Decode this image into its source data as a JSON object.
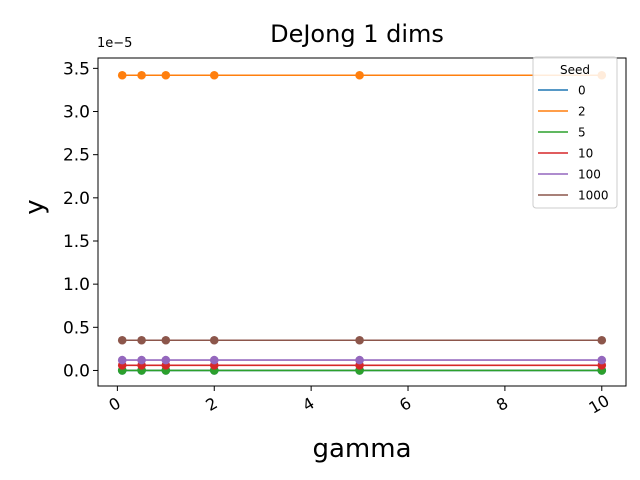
{
  "chart_data": {
    "type": "line",
    "title": "DeJong 1 dims",
    "xlabel": "gamma",
    "ylabel": "y",
    "y_offset_text": "1e−5",
    "xlim": [
      -0.4,
      10.5
    ],
    "ylim": [
      -0.18,
      3.62
    ],
    "y_scale_note": "values in units of 1e-5",
    "x_ticks": [
      0,
      2,
      4,
      6,
      8,
      10
    ],
    "x_tick_labels": [
      "0",
      "2",
      "4",
      "6",
      "8",
      "10"
    ],
    "y_ticks": [
      0.0,
      0.5,
      1.0,
      1.5,
      2.0,
      2.5,
      3.0,
      3.5
    ],
    "y_tick_labels": [
      "0.0",
      "0.5",
      "1.0",
      "1.5",
      "2.0",
      "2.5",
      "3.0",
      "3.5"
    ],
    "x": [
      0.1,
      0.5,
      1,
      2,
      5,
      10
    ],
    "series": [
      {
        "name": "0",
        "color": "#1f77b4",
        "values": [
          0.0,
          0.0,
          0.0,
          0.0,
          0.0,
          0.0
        ]
      },
      {
        "name": "2",
        "color": "#ff7f0e",
        "values": [
          3.42,
          3.42,
          3.42,
          3.42,
          3.42,
          3.42
        ]
      },
      {
        "name": "5",
        "color": "#2ca02c",
        "values": [
          0.0,
          0.0,
          0.0,
          0.0,
          0.0,
          0.0
        ]
      },
      {
        "name": "10",
        "color": "#d62728",
        "values": [
          0.06,
          0.06,
          0.06,
          0.06,
          0.06,
          0.06
        ]
      },
      {
        "name": "100",
        "color": "#9467bd",
        "values": [
          0.12,
          0.12,
          0.12,
          0.12,
          0.12,
          0.12
        ]
      },
      {
        "name": "1000",
        "color": "#8c564b",
        "values": [
          0.35,
          0.35,
          0.35,
          0.35,
          0.35,
          0.35
        ]
      }
    ],
    "legend": {
      "title": "Seed",
      "placement": "top-right"
    },
    "grid": false
  }
}
